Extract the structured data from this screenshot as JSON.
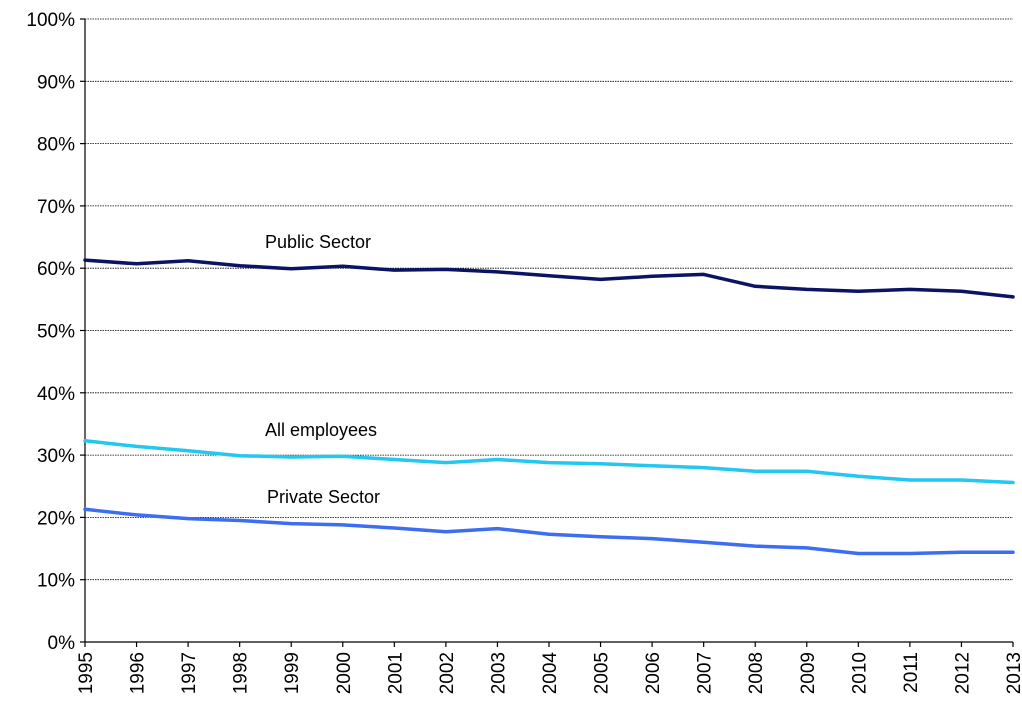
{
  "chart_data": {
    "type": "line",
    "title": "",
    "xlabel": "",
    "ylabel": "",
    "ylim": [
      0,
      100
    ],
    "y_ticks": [
      "0%",
      "10%",
      "20%",
      "30%",
      "40%",
      "50%",
      "60%",
      "70%",
      "80%",
      "90%",
      "100%"
    ],
    "categories": [
      "1995",
      "1996",
      "1997",
      "1998",
      "1999",
      "2000",
      "2001",
      "2002",
      "2003",
      "2004",
      "2005",
      "2006",
      "2007",
      "2008",
      "2009",
      "2010",
      "2011",
      "2012",
      "2013"
    ],
    "grid": true,
    "series": [
      {
        "name": "Public Sector",
        "color": "#0b1464",
        "values": [
          61.3,
          60.7,
          61.2,
          60.4,
          59.9,
          60.3,
          59.7,
          59.8,
          59.4,
          58.8,
          58.2,
          58.7,
          59.0,
          57.1,
          56.6,
          56.3,
          56.6,
          56.3,
          55.4
        ]
      },
      {
        "name": "All employees",
        "color": "#22c8f0",
        "values": [
          32.3,
          31.4,
          30.7,
          29.9,
          29.7,
          29.8,
          29.3,
          28.8,
          29.3,
          28.8,
          28.6,
          28.3,
          28.0,
          27.4,
          27.4,
          26.6,
          26.0,
          26.0,
          25.6
        ]
      },
      {
        "name": "Private Sector",
        "color": "#3d6ef2",
        "values": [
          21.3,
          20.4,
          19.8,
          19.5,
          19.0,
          18.8,
          18.3,
          17.7,
          18.2,
          17.3,
          16.9,
          16.6,
          16.0,
          15.4,
          15.1,
          14.2,
          14.2,
          14.4,
          14.4
        ]
      }
    ]
  }
}
